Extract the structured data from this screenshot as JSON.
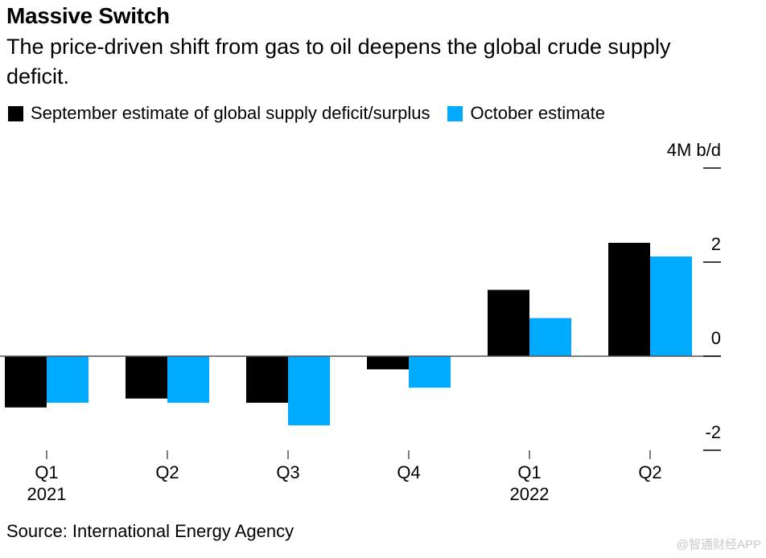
{
  "header": {
    "title": "Massive Switch",
    "subtitle": "The price-driven shift from gas to oil deepens the global crude supply deficit."
  },
  "legend": [
    {
      "label": "September estimate of global supply deficit/surplus",
      "color": "#000000"
    },
    {
      "label": "October estimate",
      "color": "#00aaff"
    }
  ],
  "footer": {
    "source": "Source: International Energy Agency",
    "watermark": "@智通财经APP"
  },
  "chart_data": {
    "type": "bar",
    "title": "Massive Switch",
    "subtitle": "The price-driven shift from gas to oil deepens the global crude supply deficit.",
    "categories": [
      "Q1 2021",
      "Q2",
      "Q3",
      "Q4",
      "Q1 2022",
      "Q2"
    ],
    "category_labels": [
      {
        "top": "Q1",
        "bottom": "2021"
      },
      {
        "top": "Q2",
        "bottom": ""
      },
      {
        "top": "Q3",
        "bottom": ""
      },
      {
        "top": "Q4",
        "bottom": ""
      },
      {
        "top": "Q1",
        "bottom": "2022"
      },
      {
        "top": "Q2",
        "bottom": ""
      }
    ],
    "series": [
      {
        "name": "September estimate of global supply deficit/surplus",
        "color": "#000000",
        "values": [
          -1.09,
          -0.9,
          -0.99,
          -0.28,
          1.41,
          2.41
        ]
      },
      {
        "name": "October estimate",
        "color": "#00aaff",
        "values": [
          -0.99,
          -0.99,
          -1.47,
          -0.67,
          0.81,
          2.12
        ]
      }
    ],
    "xlabel": "",
    "ylabel": "M b/d",
    "ylim": [
      -2,
      4
    ],
    "yticks": [
      4,
      2,
      0,
      -2
    ],
    "ytick_labels": [
      "4M b/d",
      "2",
      "0",
      "-2"
    ],
    "y_axis_position": "right",
    "grid": false,
    "legend_position": "top-left"
  }
}
